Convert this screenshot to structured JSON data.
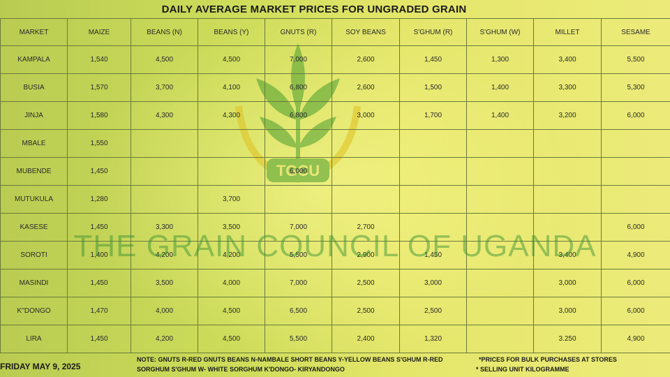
{
  "title": "DAILY AVERAGE MARKET PRICES FOR UNGRADED GRAIN",
  "logo_text": "TGCU",
  "watermark": "THE GRAIN COUNCIL OF UGANDA",
  "colors": {
    "accent_green": "#2e8c2e",
    "logo_yellow": "#e0c020",
    "border": "#6b7a3a"
  },
  "headers": [
    "MARKET",
    "MAIZE",
    "BEANS (N)",
    "BEANS (Y)",
    "GNUTS (R)",
    "SOY BEANS",
    "S'GHUM (R)",
    "S'GHUM (W)",
    "MILLET",
    "SESAME"
  ],
  "rows": [
    [
      "KAMPALA",
      "1,540",
      "4,500",
      "4,500",
      "7,000",
      "2,600",
      "1,450",
      "1,300",
      "3,400",
      "5,500"
    ],
    [
      "BUSIA",
      "1,570",
      "3,700",
      "4,100",
      "6,800",
      "2,600",
      "1,500",
      "1,400",
      "3,300",
      "5,300"
    ],
    [
      "JINJA",
      "1,580",
      "4,300",
      "4,300",
      "6,800",
      "3,000",
      "1,700",
      "1,400",
      "3,200",
      "6,000"
    ],
    [
      "MBALE",
      "1,550",
      "",
      "",
      "",
      "",
      "",
      "",
      "",
      ""
    ],
    [
      "MUBENDE",
      "1,450",
      "",
      "",
      "6,000",
      "",
      "",
      "",
      "",
      ""
    ],
    [
      "MUTUKULA",
      "1,280",
      "",
      "3,700",
      "",
      "",
      "",
      "",
      "",
      ""
    ],
    [
      "KASESE",
      "1,450",
      "3,300",
      "3,500",
      "7,000",
      "2,700",
      "",
      "",
      "",
      "6,000"
    ],
    [
      "SOROTI",
      "1,400",
      "4,200",
      "4,200",
      "5,500",
      "2,900",
      "1,450",
      "",
      "3,400",
      "4,900"
    ],
    [
      "MASINDI",
      "1,450",
      "3,500",
      "4,000",
      "7,000",
      "2,500",
      "3,000",
      "",
      "3,000",
      "6,000"
    ],
    [
      "K''DONGO",
      "1,470",
      "4,000",
      "4,500",
      "6,500",
      "2,500",
      "2,500",
      "",
      "3,000",
      "6,000"
    ],
    [
      "LIRA",
      "1,450",
      "4,200",
      "4,500",
      "5,500",
      "2,400",
      "1,320",
      "",
      "3.250",
      "4,900"
    ]
  ],
  "footer": {
    "date": "FRIDAY MAY 9, 2025",
    "note_line1": "NOTE:  GNUTS R-RED GNUTS   BEANS N-NAMBALE SHORT BEANS Y-YELLOW BEANS  S'GHUM R-RED",
    "note_line2": "SORGHUM  S'GHUM W- WHITE SORGHUM K'DONGO- KIRYANDONGO",
    "bulk_note": "*PRICES FOR BULK PURCHASES AT STORES",
    "unit_note": "* SELLING UNIT KILOGRAMME"
  }
}
